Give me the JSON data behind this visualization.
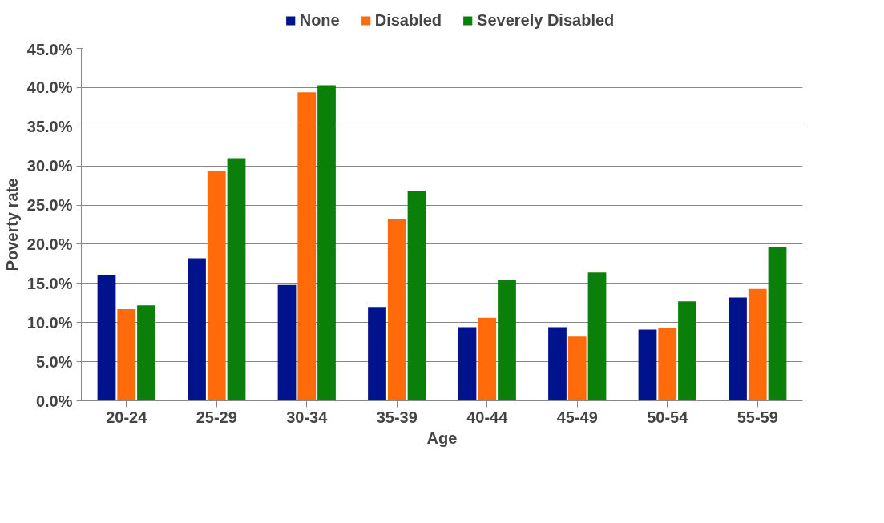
{
  "chart_data": {
    "type": "bar",
    "xlabel": "Age",
    "ylabel": "Poverty rate",
    "categories": [
      "20-24",
      "25-29",
      "30-34",
      "35-39",
      "40-44",
      "45-49",
      "50-54",
      "55-59"
    ],
    "series": [
      {
        "name": "None",
        "color": "#00138c",
        "values": [
          16.1,
          18.2,
          14.8,
          12.0,
          9.4,
          9.4,
          9.1,
          13.2
        ]
      },
      {
        "name": "Disabled",
        "color": "#ff6a0a",
        "values": [
          11.7,
          29.3,
          39.4,
          23.2,
          10.6,
          8.2,
          9.3,
          14.3
        ]
      },
      {
        "name": "Severely Disabled",
        "color": "#0a800a",
        "values": [
          12.2,
          31.0,
          40.3,
          26.8,
          15.5,
          16.4,
          12.7,
          19.7
        ]
      }
    ],
    "ylim": [
      0,
      45
    ],
    "yticks": [
      {
        "value": 0,
        "label": "0.0%"
      },
      {
        "value": 5,
        "label": "5.0%"
      },
      {
        "value": 10,
        "label": "10.0%"
      },
      {
        "value": 15,
        "label": "15.0%"
      },
      {
        "value": 20,
        "label": "20.0%"
      },
      {
        "value": 25,
        "label": "25.0%"
      },
      {
        "value": 30,
        "label": "30.0%"
      },
      {
        "value": 35,
        "label": "35.0%"
      },
      {
        "value": 40,
        "label": "40.0%"
      },
      {
        "value": 45,
        "label": "45.0%"
      }
    ],
    "grid": "y",
    "legend": "top"
  }
}
